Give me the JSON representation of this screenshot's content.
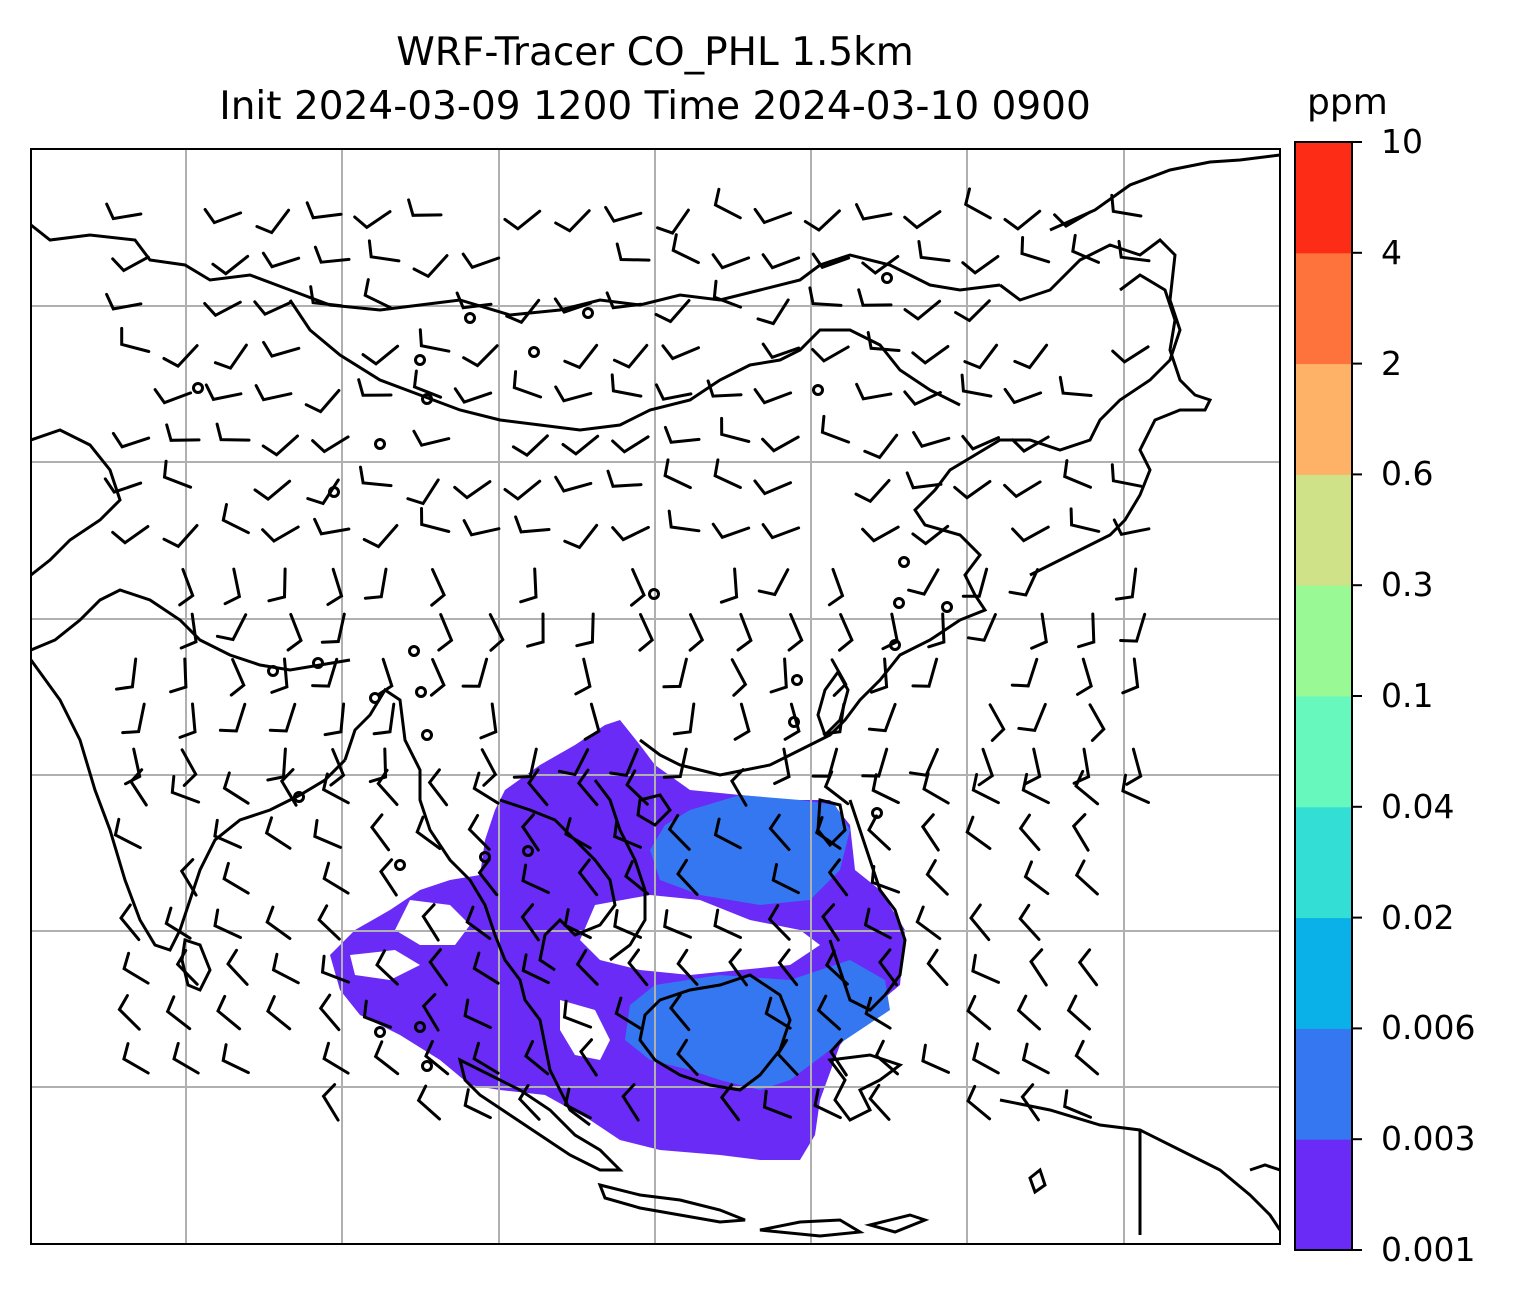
{
  "title": {
    "line1": "WRF-Tracer CO_PHL 1.5km",
    "line2": "Init 2024-03-09 1200 Time 2024-03-10 0900"
  },
  "colorbar": {
    "unit": "ppm",
    "levels": [
      "0.001",
      "0.003",
      "0.006",
      "0.02",
      "0.04",
      "0.1",
      "0.3",
      "0.6",
      "2",
      "4",
      "10"
    ],
    "colors": [
      "#6a2bf7",
      "#3477f0",
      "#09b1e8",
      "#33dfd4",
      "#66f8bd",
      "#99f995",
      "#d0e287",
      "#fdb268",
      "#fe733c",
      "#fd2c17"
    ]
  },
  "map": {
    "gridlines": true,
    "tracer_field_color": "#6a2bf7",
    "tracer_field_secondary_color": "#3477f0",
    "wind_barb_icon": "wind-barb-icon",
    "calm_marker_icon": "calm-circle-icon"
  }
}
